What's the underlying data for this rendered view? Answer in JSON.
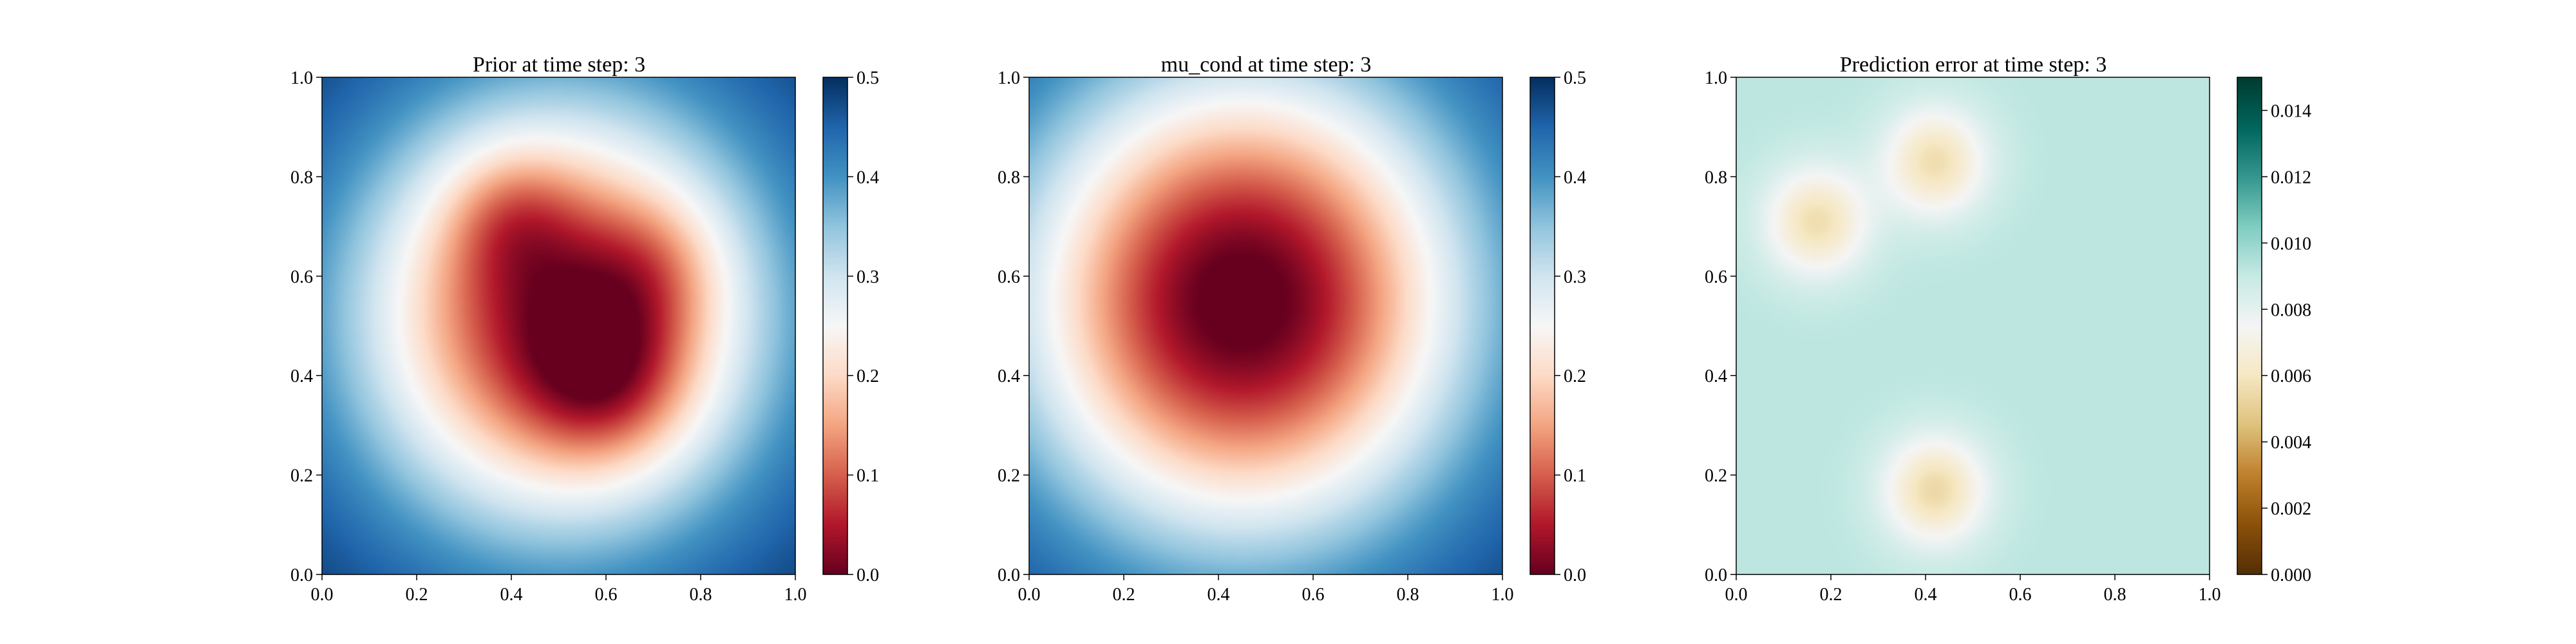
{
  "figure": {
    "panels": [
      {
        "title": "Prior at time step: 3",
        "colormap": "RdBu",
        "x_ticks": [
          "0.0",
          "0.2",
          "0.4",
          "0.6",
          "0.8",
          "1.0"
        ],
        "y_ticks": [
          "0.0",
          "0.2",
          "0.4",
          "0.6",
          "0.8",
          "1.0"
        ],
        "colorbar_ticks": [
          "0.0",
          "0.1",
          "0.2",
          "0.3",
          "0.4",
          "0.5"
        ]
      },
      {
        "title": "mu_cond at time step: 3",
        "colormap": "RdBu",
        "x_ticks": [
          "0.0",
          "0.2",
          "0.4",
          "0.6",
          "0.8",
          "1.0"
        ],
        "y_ticks": [
          "0.0",
          "0.2",
          "0.4",
          "0.6",
          "0.8",
          "1.0"
        ],
        "colorbar_ticks": [
          "0.0",
          "0.1",
          "0.2",
          "0.3",
          "0.4",
          "0.5"
        ]
      },
      {
        "title": "Prediction error at time step: 3",
        "colormap": "BrBG",
        "x_ticks": [
          "0.0",
          "0.2",
          "0.4",
          "0.6",
          "0.8",
          "1.0"
        ],
        "y_ticks": [
          "0.0",
          "0.2",
          "0.4",
          "0.6",
          "0.8",
          "1.0"
        ],
        "colorbar_ticks": [
          "0.000",
          "0.002",
          "0.004",
          "0.006",
          "0.008",
          "0.010",
          "0.012",
          "0.014"
        ]
      }
    ]
  },
  "chart_data": [
    {
      "type": "heatmap",
      "title": "Prior at time step: 3",
      "xlabel": "",
      "ylabel": "",
      "xlim": [
        0,
        1
      ],
      "ylim": [
        0,
        1
      ],
      "color_range": [
        0.0,
        0.5
      ],
      "colormap": "RdBu",
      "field": {
        "model": "background_minus_blobs",
        "background": 0.5,
        "blobs": [
          {
            "x": 0.5,
            "y": 0.52,
            "amplitude": 0.47,
            "sigma": 0.3
          },
          {
            "x": 0.6,
            "y": 0.4,
            "amplitude": 0.12,
            "sigma": 0.12
          },
          {
            "x": 0.4,
            "y": 0.72,
            "amplitude": 0.08,
            "sigma": 0.1
          },
          {
            "x": 0.7,
            "y": 0.62,
            "amplitude": 0.06,
            "sigma": 0.1
          }
        ]
      }
    },
    {
      "type": "heatmap",
      "title": "mu_cond at time step: 3",
      "xlabel": "",
      "ylabel": "",
      "xlim": [
        0,
        1
      ],
      "ylim": [
        0,
        1
      ],
      "color_range": [
        0.0,
        0.5
      ],
      "colormap": "RdBu",
      "field": {
        "model": "background_minus_blobs",
        "background": 0.5,
        "blobs": [
          {
            "x": 0.45,
            "y": 0.55,
            "amplitude": 0.52,
            "sigma": 0.33
          }
        ]
      }
    },
    {
      "type": "heatmap",
      "title": "Prediction error at time step: 3",
      "xlabel": "",
      "ylabel": "",
      "xlim": [
        0,
        1
      ],
      "ylim": [
        0,
        1
      ],
      "color_range": [
        0.0,
        0.015
      ],
      "colormap": "BrBG",
      "field": {
        "model": "background_minus_blobs",
        "background": 0.0092,
        "blobs": [
          {
            "x": 0.17,
            "y": 0.71,
            "amplitude": 0.0036,
            "sigma": 0.075
          },
          {
            "x": 0.42,
            "y": 0.83,
            "amplitude": 0.0036,
            "sigma": 0.075
          },
          {
            "x": 0.42,
            "y": 0.17,
            "amplitude": 0.0038,
            "sigma": 0.075
          }
        ]
      }
    }
  ]
}
